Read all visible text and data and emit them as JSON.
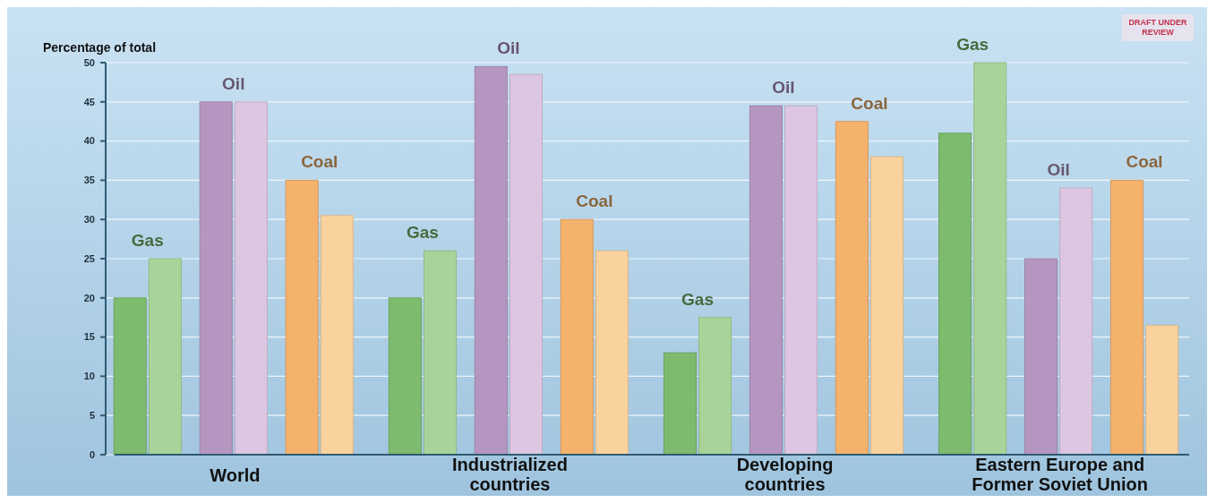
{
  "chart_data": {
    "type": "bar",
    "ylabel": "Percentage of total",
    "categories": [
      "World",
      "Industrialized countries",
      "Developing countries",
      "Eastern Europe and Former Soviet Union"
    ],
    "series": [
      {
        "name": "Gas",
        "color": "#7dbb6e",
        "values": [
          20,
          20,
          13,
          41
        ]
      },
      {
        "color": "#a8d49a",
        "values": [
          25,
          26,
          17.5,
          50
        ]
      },
      {
        "name": "Oil",
        "color": "#b596c0",
        "values": [
          45,
          49.5,
          44.5,
          25
        ]
      },
      {
        "color": "#dcc6e2",
        "values": [
          45,
          48.5,
          44.5,
          34
        ]
      },
      {
        "name": "Coal",
        "color": "#f5b26c",
        "values": [
          35,
          30,
          42.5,
          35
        ]
      },
      {
        "color": "#f9d29e",
        "values": [
          30.5,
          26,
          38,
          16.5
        ]
      }
    ],
    "ylim": [
      0,
      50
    ],
    "yticks": [
      0,
      5,
      10,
      15,
      20,
      25,
      30,
      35,
      40,
      45,
      50
    ],
    "grid": "y",
    "annotations": [
      "DRAFT UNDER REVIEW"
    ]
  }
}
